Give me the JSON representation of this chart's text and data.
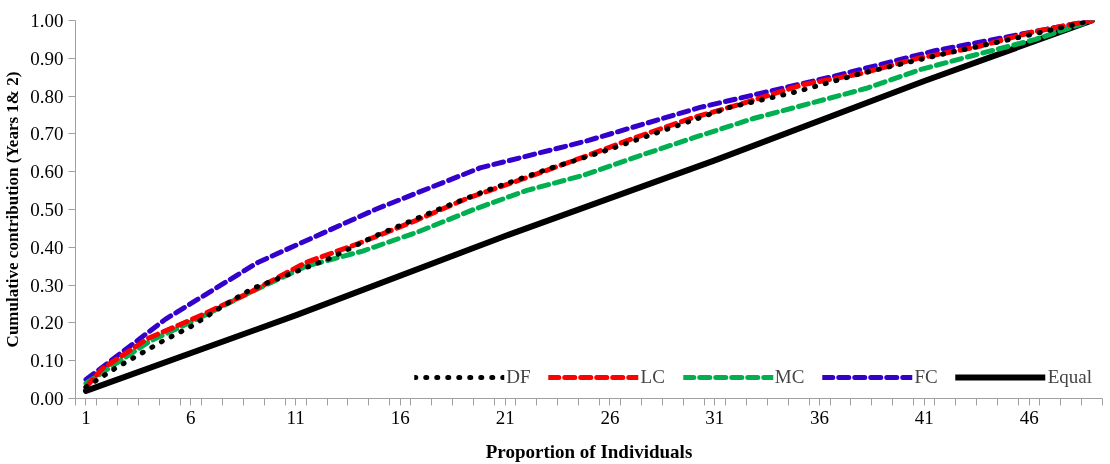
{
  "chart_data": {
    "type": "line",
    "xlabel": "Proportion of Individuals",
    "ylabel": "Cumulative contribution (Years 1& 2)",
    "xlim": [
      0.5,
      49.5
    ],
    "ylim": [
      0,
      1
    ],
    "xticks": [
      1,
      6,
      11,
      16,
      21,
      26,
      31,
      36,
      41,
      46,
      {
        "value": 0.5,
        "label": null
      },
      {
        "value": 1.5,
        "label": null
      },
      {
        "value": 2.5,
        "label": null
      },
      {
        "value": 3.5,
        "label": null
      },
      {
        "value": 4.5,
        "label": null
      },
      {
        "value": 5.5,
        "label": null
      },
      {
        "value": 6.5,
        "label": null
      },
      {
        "value": 7.5,
        "label": null
      },
      {
        "value": 8.5,
        "label": null
      },
      {
        "value": 9.5,
        "label": null
      },
      {
        "value": 10.5,
        "label": null
      },
      {
        "value": 11.5,
        "label": null
      },
      {
        "value": 12.5,
        "label": null
      },
      {
        "value": 13.5,
        "label": null
      },
      {
        "value": 14.5,
        "label": null
      },
      {
        "value": 15.5,
        "label": null
      },
      {
        "value": 16.5,
        "label": null
      },
      {
        "value": 17.5,
        "label": null
      },
      {
        "value": 18.5,
        "label": null
      },
      {
        "value": 19.5,
        "label": null
      },
      {
        "value": 20.5,
        "label": null
      },
      {
        "value": 21.5,
        "label": null
      },
      {
        "value": 22.5,
        "label": null
      },
      {
        "value": 23.5,
        "label": null
      },
      {
        "value": 24.5,
        "label": null
      },
      {
        "value": 25.5,
        "label": null
      },
      {
        "value": 26.5,
        "label": null
      },
      {
        "value": 27.5,
        "label": null
      },
      {
        "value": 28.5,
        "label": null
      },
      {
        "value": 29.5,
        "label": null
      },
      {
        "value": 30.5,
        "label": null
      },
      {
        "value": 31.5,
        "label": null
      },
      {
        "value": 32.5,
        "label": null
      },
      {
        "value": 33.5,
        "label": null
      },
      {
        "value": 34.5,
        "label": null
      },
      {
        "value": 35.5,
        "label": null
      },
      {
        "value": 36.5,
        "label": null
      },
      {
        "value": 37.5,
        "label": null
      },
      {
        "value": 38.5,
        "label": null
      },
      {
        "value": 39.5,
        "label": null
      },
      {
        "value": 40.5,
        "label": null
      },
      {
        "value": 41.5,
        "label": null
      },
      {
        "value": 42.5,
        "label": null
      },
      {
        "value": 43.5,
        "label": null
      },
      {
        "value": 44.5,
        "label": null
      },
      {
        "value": 45.5,
        "label": null
      },
      {
        "value": 46.5,
        "label": null
      },
      {
        "value": 47.5,
        "label": null
      },
      {
        "value": 48.5,
        "label": null
      },
      {
        "value": 49.5,
        "label": null
      }
    ],
    "yticks": [
      {
        "value": 0,
        "label": "0.00"
      },
      {
        "value": 0.1,
        "label": "0.10"
      },
      {
        "value": 0.2,
        "label": "0.20"
      },
      {
        "value": 0.3,
        "label": "0.30"
      },
      {
        "value": 0.4,
        "label": "0.40"
      },
      {
        "value": 0.5,
        "label": "0.50"
      },
      {
        "value": 0.6,
        "label": "0.60"
      },
      {
        "value": 0.7,
        "label": "0.70"
      },
      {
        "value": 0.8,
        "label": "0.80"
      },
      {
        "value": 0.9,
        "label": "0.90"
      },
      {
        "value": 1,
        "label": "1.00"
      }
    ],
    "grid": false,
    "legend": "bottom right",
    "series": [
      {
        "name": "DF",
        "color": "#000000",
        "line_style": "dotted",
        "x": [
          1,
          2.4,
          4.6,
          6,
          7.4,
          8.9,
          10.3,
          12.6,
          14.8,
          17.8,
          20.1,
          23.2,
          25.5,
          28.6,
          31.7,
          34.8,
          38,
          41.8,
          45.1,
          49
        ],
        "values": [
          0.03,
          0.08,
          0.15,
          0.19,
          0.24,
          0.29,
          0.32,
          0.37,
          0.43,
          0.5,
          0.55,
          0.61,
          0.65,
          0.71,
          0.77,
          0.81,
          0.86,
          0.91,
          0.95,
          1
        ]
      },
      {
        "name": "LC",
        "color": "#ff0000",
        "line_style": "dashed",
        "x": [
          1,
          1.8,
          4,
          6.5,
          8.8,
          11.5,
          14,
          16.7,
          19.2,
          21.8,
          24.8,
          27.2,
          29.8,
          32.3,
          35.2,
          38,
          40.7,
          43.5,
          46.2,
          49
        ],
        "values": [
          0.03,
          0.08,
          0.16,
          0.22,
          0.28,
          0.36,
          0.41,
          0.47,
          0.53,
          0.58,
          0.64,
          0.69,
          0.74,
          0.78,
          0.83,
          0.86,
          0.9,
          0.93,
          0.97,
          1
        ]
      },
      {
        "name": "MC",
        "color": "#00b050",
        "line_style": "dashed",
        "x": [
          1,
          4,
          6.3,
          8.8,
          11.5,
          14.2,
          16.8,
          19.5,
          22,
          24.7,
          27.3,
          30,
          32.8,
          35.5,
          38.2,
          40.8,
          43.5,
          46.3,
          49
        ],
        "values": [
          0.04,
          0.15,
          0.21,
          0.28,
          0.35,
          0.39,
          0.44,
          0.5,
          0.55,
          0.59,
          0.64,
          0.69,
          0.74,
          0.78,
          0.82,
          0.87,
          0.91,
          0.95,
          1
        ]
      },
      {
        "name": "FC",
        "color": "#3300cc",
        "line_style": "dashed",
        "x": [
          1,
          4.8,
          9.2,
          14.8,
          19.8,
          24.8,
          30.3,
          36.5,
          41.5,
          46.2,
          49
        ],
        "values": [
          0.05,
          0.21,
          0.36,
          0.5,
          0.61,
          0.68,
          0.77,
          0.85,
          0.92,
          0.97,
          1
        ]
      },
      {
        "name": "Equal",
        "color": "#000000",
        "line_style": "solid",
        "x": [
          1,
          11,
          21,
          31,
          41,
          49
        ],
        "values": [
          0.02,
          0.22,
          0.43,
          0.63,
          0.84,
          1
        ]
      }
    ]
  }
}
